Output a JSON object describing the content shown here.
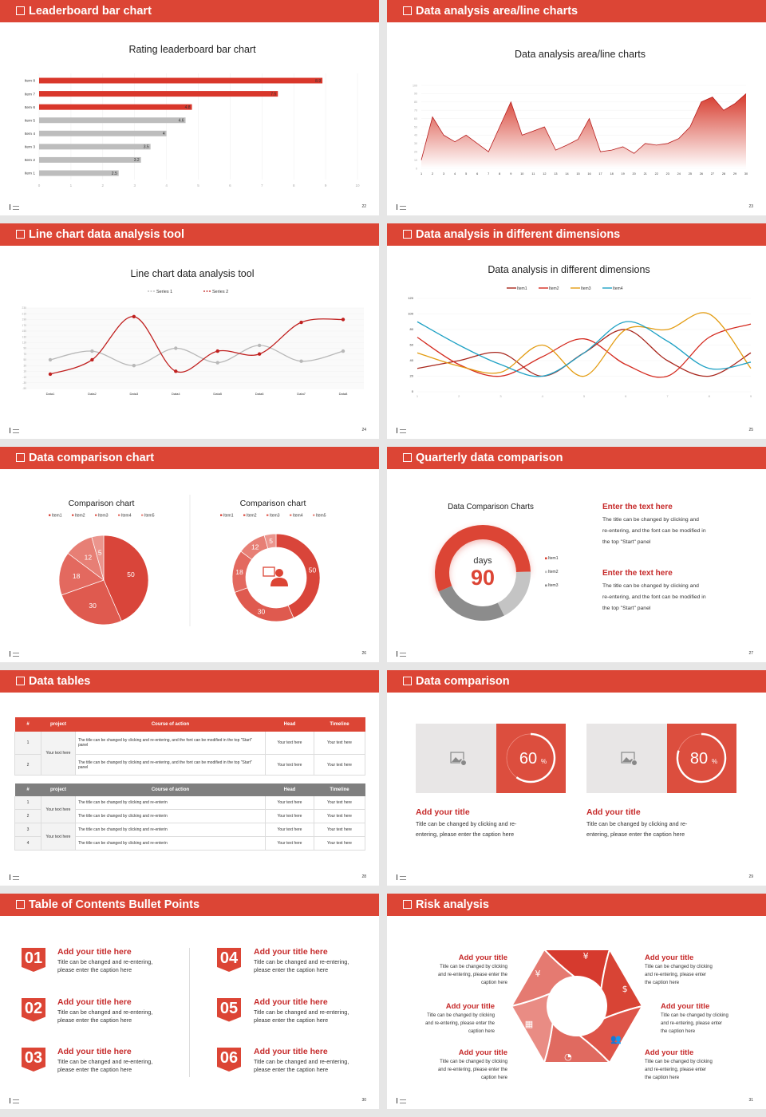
{
  "colors": {
    "accent": "#dc4535",
    "title_red": "#c62a2a",
    "gray": "#bdbdbd",
    "dark_gray": "#8a8a8a"
  },
  "slides": [
    {
      "header": "Leaderboard bar chart",
      "page": "22"
    },
    {
      "header": "Data analysis area/line charts",
      "page": "23"
    },
    {
      "header": "Line chart data analysis tool",
      "page": "24"
    },
    {
      "header": "Data analysis in different dimensions",
      "page": "25"
    },
    {
      "header": "Data comparison chart",
      "page": "26"
    },
    {
      "header": "Quarterly data comparison",
      "page": "27"
    },
    {
      "header": "Data tables",
      "page": "28"
    },
    {
      "header": "Data comparison",
      "page": "29"
    },
    {
      "header": "Table of Contents Bullet Points",
      "page": "30"
    },
    {
      "header": "Risk analysis",
      "page": "31"
    }
  ],
  "chart_data": [
    {
      "type": "bar",
      "orientation": "horizontal",
      "title": "Rating leaderboard bar chart",
      "categories": [
        "Item 1",
        "Item 2",
        "Item 3",
        "Item 4",
        "Item 5",
        "Item 6",
        "Item 7",
        "Item 8"
      ],
      "values": [
        2.5,
        3.2,
        3.5,
        4,
        4.6,
        4.8,
        7.5,
        8.9
      ],
      "value_labels": [
        "2.5",
        "3.2",
        "3.5",
        "4",
        "4.6",
        "4.8",
        "7.5",
        "8.9"
      ],
      "bar_colors": [
        "#bdbdbd",
        "#bdbdbd",
        "#bdbdbd",
        "#bdbdbd",
        "#bdbdbd",
        "#d9372b",
        "#d9372b",
        "#d9372b"
      ],
      "xlim": [
        0,
        10
      ],
      "xticks": [
        "0",
        "1",
        "2",
        "3",
        "4",
        "5",
        "6",
        "7",
        "8",
        "9",
        "10"
      ],
      "grid": true
    },
    {
      "type": "area",
      "title": "Data analysis area/line charts",
      "x": [
        "1",
        "2",
        "3",
        "4",
        "5",
        "6",
        "7",
        "8",
        "9",
        "10",
        "11",
        "12",
        "13",
        "14",
        "15",
        "16",
        "17",
        "18",
        "19",
        "20",
        "21",
        "22",
        "23",
        "24",
        "25",
        "26",
        "27",
        "28",
        "29",
        "30"
      ],
      "values": [
        10,
        62,
        40,
        32,
        40,
        30,
        20,
        50,
        80,
        40,
        45,
        50,
        22,
        28,
        35,
        60,
        20,
        22,
        26,
        18,
        30,
        28,
        30,
        36,
        50,
        80,
        86,
        70,
        78,
        90
      ],
      "ylim": [
        0,
        100
      ],
      "yticks": [
        "0",
        "10",
        "20",
        "30",
        "40",
        "50",
        "60",
        "70",
        "80",
        "90",
        "100"
      ],
      "color": "#c9302c",
      "grid": true
    },
    {
      "type": "line",
      "title": "Line chart data analysis tool",
      "smooth": true,
      "categories": [
        "Data1",
        "Data2",
        "Data3",
        "Data4",
        "Data5",
        "Data6",
        "Data7",
        "Data8"
      ],
      "series": [
        {
          "name": "Series 1",
          "values": [
            50,
            80,
            30,
            90,
            40,
            100,
            45,
            80
          ],
          "color": "#b8b8b8"
        },
        {
          "name": "Series 2",
          "values": [
            0,
            50,
            200,
            10,
            80,
            70,
            180,
            190
          ],
          "color": "#c0201f"
        }
      ],
      "ylim": [
        -50,
        230
      ],
      "yticks": [
        "-50",
        "-30",
        "-10",
        "10",
        "30",
        "50",
        "70",
        "90",
        "110",
        "130",
        "150",
        "170",
        "190",
        "210",
        "230"
      ],
      "legend": "top"
    },
    {
      "type": "line",
      "title": "Data analysis in different dimensions",
      "smooth": true,
      "x": [
        "1",
        "2",
        "3",
        "4",
        "5",
        "6",
        "7",
        "8",
        "9"
      ],
      "series": [
        {
          "name": "Item1",
          "values": [
            30,
            40,
            50,
            20,
            50,
            80,
            40,
            20,
            50
          ],
          "color": "#a8261c"
        },
        {
          "name": "Item2",
          "values": [
            70,
            35,
            20,
            45,
            68,
            35,
            20,
            70,
            87
          ],
          "color": "#d42a1f"
        },
        {
          "name": "Item3",
          "values": [
            50,
            33,
            25,
            60,
            20,
            80,
            80,
            100,
            30
          ],
          "color": "#e39c12"
        },
        {
          "name": "Item4",
          "values": [
            90,
            60,
            35,
            20,
            50,
            90,
            65,
            30,
            38
          ],
          "color": "#1fa1c4"
        }
      ],
      "ylim": [
        0,
        120
      ],
      "yticks": [
        "0",
        "20",
        "40",
        "60",
        "80",
        "100",
        "120"
      ],
      "legend": "top"
    },
    {
      "type": "pie",
      "title": "Comparison chart",
      "categories": [
        "Item1",
        "Item2",
        "Item3",
        "Item4",
        "Item5"
      ],
      "values": [
        50,
        30,
        18,
        12,
        5
      ],
      "colors": [
        "#d9453a",
        "#df5a4f",
        "#e3695f",
        "#e77f75",
        "#eb958d"
      ],
      "legend": "top"
    },
    {
      "type": "pie",
      "variant": "donut",
      "title": "Comparison chart",
      "categories": [
        "Item1",
        "Item2",
        "Item3",
        "Item4",
        "Item5"
      ],
      "values": [
        50,
        30,
        18,
        12,
        5
      ],
      "colors": [
        "#d9453a",
        "#df5a4f",
        "#e3695f",
        "#e77f75",
        "#eb958d"
      ],
      "legend": "top",
      "center_icon": "customer-service-icon"
    },
    {
      "type": "pie",
      "variant": "donut",
      "title": "Data Comparison Charts",
      "categories": [
        "Item1",
        "Item2",
        "Item3"
      ],
      "values": [
        56,
        18,
        26
      ],
      "colors": [
        "#dc4535",
        "#c4c4c4",
        "#8c8c8c"
      ],
      "center_label": "days",
      "center_value": "90",
      "legend": "right"
    }
  ],
  "quarterly": {
    "blocks": [
      {
        "title": "Enter the text here",
        "lines": [
          "The title can be changed by clicking and",
          "re-entering, and the font can be modified in",
          "the top \"Start\" panel"
        ]
      },
      {
        "title": "Enter the text here",
        "lines": [
          "The title can be changed by clicking and",
          "re-entering, and the font can be modified in",
          "the top \"Start\" panel"
        ]
      }
    ]
  },
  "tables": {
    "headers": [
      "#",
      "project",
      "Course of action",
      "Head",
      "Timeline"
    ],
    "table1": {
      "rows": [
        {
          "n": "1",
          "project": "Your text here",
          "action": "The title can be changed by clicking and re-entering, and the font can be modified in the top \"Start\" panel",
          "head": "Your text here",
          "timeline": "Your text here"
        },
        {
          "n": "2",
          "action": "The title can be changed by clicking and re-entering, and the font can be modified in the top \"Start\" panel",
          "head": "Your text here",
          "timeline": "Your text here"
        }
      ]
    },
    "table2": {
      "rows": [
        {
          "n": "1",
          "project": "Your text here",
          "action": "The title can be changed by clicking and re-enterin",
          "head": "Your text here",
          "timeline": "Your text here"
        },
        {
          "n": "2",
          "action": "The title can be changed by clicking and re-enterin",
          "head": "Your text here",
          "timeline": "Your text here"
        },
        {
          "n": "3",
          "project": "Your text here",
          "action": "The title can be changed by clicking and re-enterin",
          "head": "Your text here",
          "timeline": "Your text here"
        },
        {
          "n": "4",
          "action": "The title can be changed by clicking and re-enterin",
          "head": "Your text here",
          "timeline": "Your text here"
        }
      ]
    }
  },
  "comparison": {
    "cards": [
      {
        "percent": 60,
        "value": "60",
        "unit": "%",
        "title": "Add your title",
        "lines": [
          "Title can be changed by clicking and re-",
          "entering, please enter the caption here"
        ],
        "image_icon": "add-image-icon"
      },
      {
        "percent": 80,
        "value": "80",
        "unit": "%",
        "title": "Add your title",
        "lines": [
          "Title can be changed by clicking and re-",
          "entering, please enter the caption here"
        ],
        "image_icon": "add-image-icon"
      }
    ]
  },
  "toc": {
    "items": [
      {
        "num": "01",
        "title": "Add your title here",
        "lines": [
          "Title can be changed and re-entering,",
          "please enter the caption here"
        ]
      },
      {
        "num": "02",
        "title": "Add your title here",
        "lines": [
          "Title can be changed and re-entering,",
          "please enter the caption here"
        ]
      },
      {
        "num": "03",
        "title": "Add your title here",
        "lines": [
          "Title can be changed and re-entering,",
          "please enter the caption here"
        ]
      },
      {
        "num": "04",
        "title": "Add your title here",
        "lines": [
          "Title can be changed and re-entering,",
          "please enter the caption here"
        ]
      },
      {
        "num": "05",
        "title": "Add your title here",
        "lines": [
          "Title can be changed and re-entering,",
          "please enter the caption here"
        ]
      },
      {
        "num": "06",
        "title": "Add your title here",
        "lines": [
          "Title can be changed and re-entering,",
          "please enter the caption here"
        ]
      }
    ]
  },
  "risk": {
    "icons": [
      "money-bag-icon",
      "coins-icon",
      "users-icon",
      "pie-chart-icon",
      "buildings-icon",
      "yen-hand-icon"
    ],
    "items": [
      {
        "title": "Add your title",
        "lines": [
          "Title can be changed by clicking",
          "and re-entering, please enter the",
          "caption here"
        ]
      },
      {
        "title": "Add your title",
        "lines": [
          "Title can be changed by clicking",
          "and re-entering, please enter the",
          "caption here"
        ]
      },
      {
        "title": "Add your title",
        "lines": [
          "Title can be changed by clicking",
          "and re-entering, please enter the",
          "caption here"
        ]
      },
      {
        "title": "Add your title",
        "lines": [
          "Title can be changed by clicking",
          "and re-entering, please enter",
          "the caption here"
        ]
      },
      {
        "title": "Add your title",
        "lines": [
          "Title can be changed by clicking",
          "and re-entering, please enter",
          "the caption here"
        ]
      },
      {
        "title": "Add your title",
        "lines": [
          "Title can be changed by clicking",
          "and re-entering, please enter",
          "the caption here"
        ]
      }
    ]
  }
}
